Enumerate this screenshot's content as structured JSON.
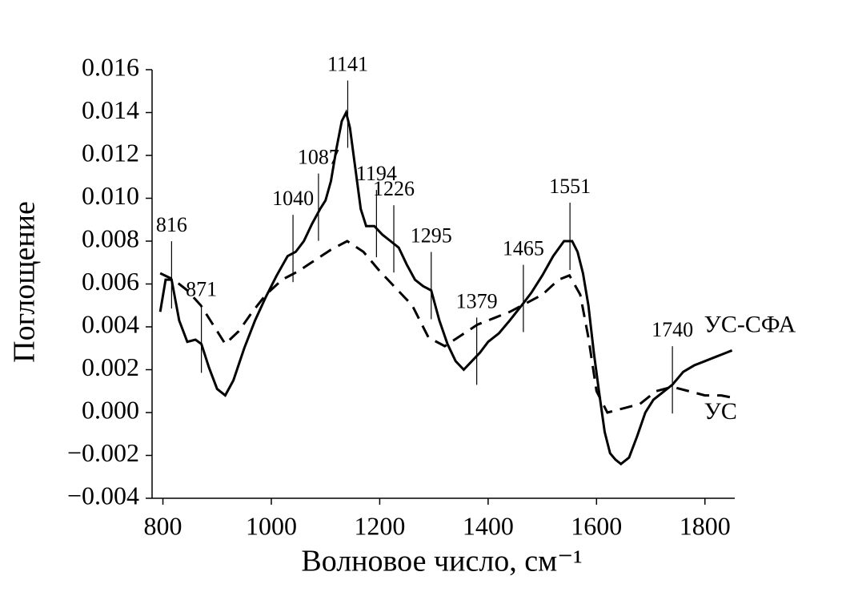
{
  "chart_data": {
    "type": "line",
    "x_label": "Волновое число, см⁻¹",
    "y_label": "Поглощение",
    "xlim": [
      780,
      1855
    ],
    "ylim": [
      -0.004,
      0.016
    ],
    "xticks": [
      800,
      1000,
      1200,
      1400,
      1600,
      1800
    ],
    "yticks": [
      {
        "value": -0.004,
        "label": "−0.004"
      },
      {
        "value": -0.002,
        "label": "−0.002"
      },
      {
        "value": 0,
        "label": "0.000"
      },
      {
        "value": 0.002,
        "label": "0.002"
      },
      {
        "value": 0.004,
        "label": "0.004"
      },
      {
        "value": 0.006,
        "label": "0.006"
      },
      {
        "value": 0.008,
        "label": "0.008"
      },
      {
        "value": 0.01,
        "label": "0.010"
      },
      {
        "value": 0.012,
        "label": "0.012"
      },
      {
        "value": 0.014,
        "label": "0.014"
      },
      {
        "value": 0.016,
        "label": "0.016"
      }
    ],
    "series": [
      {
        "name": "УС-СФА",
        "color": "#000000",
        "dash": "solid",
        "x": [
          795,
          805,
          816,
          830,
          845,
          860,
          871,
          885,
          900,
          915,
          930,
          950,
          970,
          990,
          1010,
          1030,
          1045,
          1060,
          1075,
          1090,
          1100,
          1110,
          1120,
          1130,
          1138,
          1145,
          1155,
          1165,
          1175,
          1190,
          1205,
          1220,
          1235,
          1250,
          1265,
          1280,
          1295,
          1310,
          1325,
          1340,
          1355,
          1370,
          1385,
          1400,
          1420,
          1440,
          1465,
          1480,
          1500,
          1520,
          1540,
          1555,
          1565,
          1575,
          1585,
          1595,
          1605,
          1615,
          1625,
          1635,
          1645,
          1660,
          1675,
          1690,
          1705,
          1720,
          1740,
          1760,
          1780,
          1800,
          1820,
          1840,
          1850
        ],
        "values": [
          0.0047,
          0.0062,
          0.0062,
          0.0043,
          0.0033,
          0.0034,
          0.0032,
          0.0021,
          0.0011,
          0.0008,
          0.0015,
          0.003,
          0.0043,
          0.0054,
          0.0064,
          0.0073,
          0.0075,
          0.008,
          0.0088,
          0.0095,
          0.0099,
          0.0108,
          0.0123,
          0.0136,
          0.014,
          0.0133,
          0.0114,
          0.0095,
          0.0087,
          0.0087,
          0.0083,
          0.008,
          0.0077,
          0.0069,
          0.0062,
          0.0059,
          0.0057,
          0.0043,
          0.0032,
          0.0024,
          0.002,
          0.0024,
          0.0028,
          0.0033,
          0.0037,
          0.0043,
          0.0051,
          0.0056,
          0.0064,
          0.0073,
          0.008,
          0.008,
          0.0075,
          0.0065,
          0.005,
          0.0028,
          0.0009,
          -0.0009,
          -0.0019,
          -0.0022,
          -0.0024,
          -0.0021,
          -0.0011,
          0,
          0.0006,
          0.0009,
          0.0013,
          0.0019,
          0.0022,
          0.0024,
          0.0026,
          0.0028,
          0.0029
        ]
      },
      {
        "name": "УС",
        "color": "#000000",
        "dash": "dashed",
        "x": [
          795,
          820,
          845,
          870,
          895,
          915,
          940,
          965,
          990,
          1020,
          1050,
          1080,
          1110,
          1140,
          1170,
          1200,
          1230,
          1260,
          1290,
          1320,
          1350,
          1380,
          1410,
          1440,
          1470,
          1500,
          1530,
          1550,
          1570,
          1585,
          1600,
          1620,
          1650,
          1680,
          1710,
          1740,
          1770,
          1800,
          1830,
          1850
        ],
        "values": [
          0.0065,
          0.0062,
          0.0057,
          0.005,
          0.004,
          0.0032,
          0.0038,
          0.0047,
          0.0055,
          0.0062,
          0.0066,
          0.0071,
          0.0076,
          0.008,
          0.0075,
          0.0066,
          0.0058,
          0.005,
          0.0035,
          0.0031,
          0.0036,
          0.0041,
          0.0044,
          0.0047,
          0.0051,
          0.0055,
          0.0062,
          0.0064,
          0.0055,
          0.0035,
          0.001,
          0,
          0.0002,
          0.0004,
          0.001,
          0.0012,
          0.001,
          0.0008,
          0.0008,
          0.0007
        ]
      }
    ],
    "peaks": [
      816,
      871,
      1040,
      1087,
      1141,
      1194,
      1226,
      1295,
      1379,
      1465,
      1551,
      1740
    ]
  }
}
